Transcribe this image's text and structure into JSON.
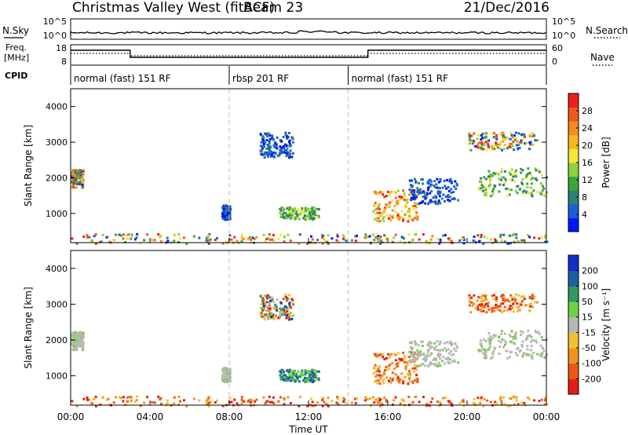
{
  "header": {
    "station": "Christmas Valley West (fitACF)",
    "beam": "Beam 23",
    "date": "21/Dec/2016"
  },
  "top_panels": {
    "nsky_label": "N.Sky",
    "nsearch_label": "N.Search",
    "noise_ticks": [
      "10^5",
      "10^0"
    ],
    "freq_label_1": "Freq.",
    "freq_label_2": "[MHz]",
    "freq_ticks": [
      "18",
      "8"
    ],
    "nave_label": "Nave",
    "nave_ticks": [
      "60",
      "0"
    ],
    "cpid_label": "CPID",
    "cpid_segments": [
      {
        "label": "normal (fast) 151 RF",
        "start_h": 0,
        "end_h": 8
      },
      {
        "label": "rbsp 201 RF",
        "start_h": 8,
        "end_h": 14
      },
      {
        "label": "normal (fast) 151 RF",
        "start_h": 14,
        "end_h": 24
      }
    ],
    "freq_trace": [
      {
        "start_h": 0,
        "end_h": 3,
        "level": "high"
      },
      {
        "start_h": 3,
        "end_h": 15,
        "level": "low"
      },
      {
        "start_h": 15,
        "end_h": 24,
        "level": "high"
      }
    ]
  },
  "x_axis": {
    "label": "Time UT",
    "ticks": [
      "00:00",
      "04:00",
      "08:00",
      "12:00",
      "16:00",
      "20:00",
      "00:00"
    ],
    "range_hours": [
      0,
      24
    ]
  },
  "y_axis": {
    "label": "Slant Range [km]",
    "ticks": [
      "1000",
      "2000",
      "3000",
      "4000"
    ],
    "range_km": [
      180,
      4500
    ]
  },
  "power_colorbar": {
    "label": "Power [dB]",
    "ticks": [
      "4",
      "8",
      "12",
      "16",
      "20",
      "24",
      "28"
    ],
    "colors": [
      "#0018ff",
      "#1a5fd8",
      "#2f7f7a",
      "#3aa63a",
      "#8fd23f",
      "#f5e63a",
      "#f8b820",
      "#f58a1e",
      "#ee5a1c",
      "#e8231c"
    ]
  },
  "velocity_colorbar": {
    "label": "Velocity [m s⁻¹]",
    "ticks": [
      "200",
      "100",
      "50",
      "15",
      "-15",
      "-50",
      "-100",
      "-200"
    ],
    "colors": [
      "#1030c8",
      "#1f5fa0",
      "#2f9a5f",
      "#6fd244",
      "#b8b8b4",
      "#f4c032",
      "#f29220",
      "#ea5a16",
      "#e41e16"
    ]
  },
  "chart_data": {
    "type": "heatmap",
    "panels": [
      {
        "name": "Power",
        "colorbar": "power_colorbar"
      },
      {
        "name": "Velocity",
        "colorbar": "velocity_colorbar"
      }
    ],
    "xlim_hours": [
      0,
      24
    ],
    "ylim_km": [
      180,
      4500
    ],
    "echo_regions": [
      {
        "t0": 0.0,
        "t1": 0.6,
        "r0": 1750,
        "r1": 2250,
        "power": "mixed",
        "velocity": "near-zero"
      },
      {
        "t0": 7.6,
        "t1": 8.0,
        "r0": 850,
        "r1": 1250,
        "power": "low",
        "velocity": "near-zero"
      },
      {
        "t0": 9.5,
        "t1": 11.2,
        "r0": 2600,
        "r1": 3300,
        "power": "low",
        "velocity": "mixed"
      },
      {
        "t0": 10.5,
        "t1": 12.5,
        "r0": 850,
        "r1": 1200,
        "power": "moderate",
        "velocity": "positive"
      },
      {
        "t0": 15.2,
        "t1": 17.5,
        "r0": 800,
        "r1": 1700,
        "power": "high",
        "velocity": "negative"
      },
      {
        "t0": 17.0,
        "t1": 19.5,
        "r0": 1300,
        "r1": 2000,
        "power": "low",
        "velocity": "near-zero"
      },
      {
        "t0": 20.5,
        "t1": 24.0,
        "r0": 1500,
        "r1": 2300,
        "power": "moderate",
        "velocity": "near-zero"
      },
      {
        "t0": 20.0,
        "t1": 23.5,
        "r0": 2800,
        "r1": 3300,
        "power": "mixed",
        "velocity": "negative"
      },
      {
        "t0": 0.0,
        "t1": 24.0,
        "r0": 180,
        "r1": 450,
        "power": "mixed",
        "velocity": "negative"
      }
    ]
  }
}
